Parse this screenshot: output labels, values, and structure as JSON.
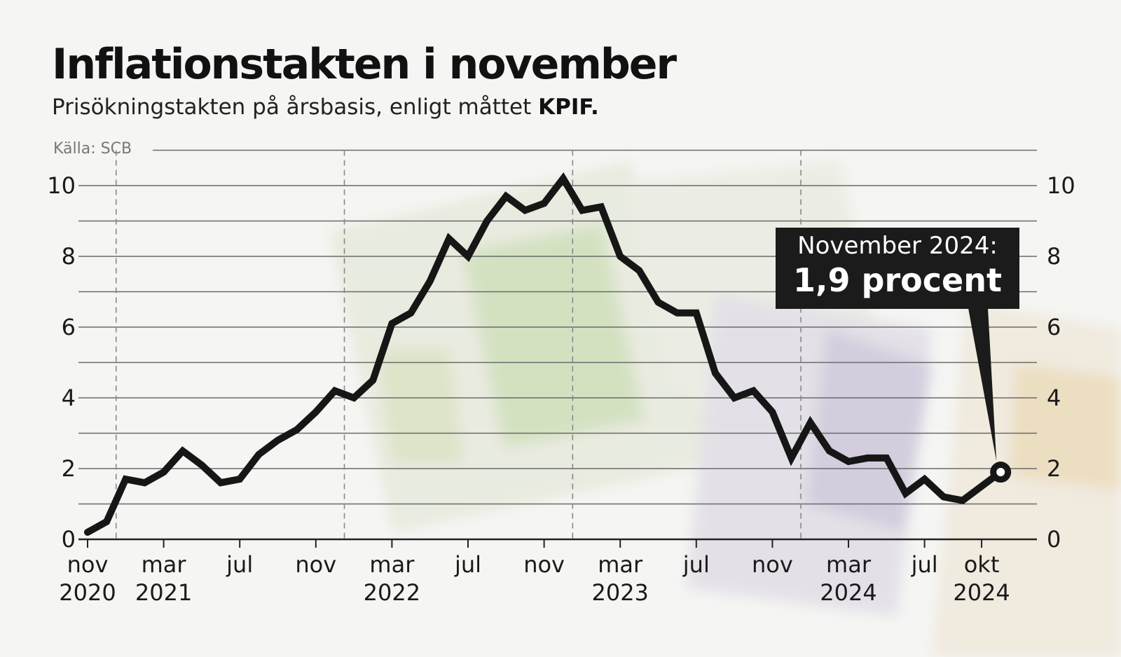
{
  "title": "Inflationstakten i november",
  "subtitle_text": "Prisökningstakten på årsbasis, enligt måttet ",
  "subtitle_bold": "KPIF.",
  "source": "Källa: SCB",
  "callout": {
    "line1": "November 2024:",
    "line2": "1,9 procent"
  },
  "colors": {
    "line": "#161616",
    "grid": "#6a6a6a",
    "callout_bg": "#1b1b1b"
  },
  "chart_data": {
    "type": "line",
    "title": "Inflationstakten i november",
    "subtitle": "Prisökningstakten på årsbasis, enligt måttet KPIF.",
    "ylim": [
      0,
      10
    ],
    "yticks": [
      0,
      2,
      4,
      6,
      8,
      10
    ],
    "grid": true,
    "grid_step": 1,
    "year_separators": "dashed vertical lines at year boundaries",
    "x_tick_labels": [
      {
        "index": 0,
        "lines": [
          "nov",
          "2020"
        ]
      },
      {
        "index": 4,
        "lines": [
          "mar",
          "2021"
        ]
      },
      {
        "index": 8,
        "lines": [
          "jul",
          ""
        ]
      },
      {
        "index": 12,
        "lines": [
          "nov",
          ""
        ]
      },
      {
        "index": 16,
        "lines": [
          "mar",
          "2022"
        ]
      },
      {
        "index": 20,
        "lines": [
          "jul",
          ""
        ]
      },
      {
        "index": 24,
        "lines": [
          "nov",
          ""
        ]
      },
      {
        "index": 28,
        "lines": [
          "mar",
          "2023"
        ]
      },
      {
        "index": 32,
        "lines": [
          "jul",
          ""
        ]
      },
      {
        "index": 36,
        "lines": [
          "nov",
          ""
        ]
      },
      {
        "index": 40,
        "lines": [
          "mar",
          "2024"
        ]
      },
      {
        "index": 44,
        "lines": [
          "jul",
          ""
        ]
      },
      {
        "index": 47,
        "lines": [
          "okt",
          "2024"
        ]
      }
    ],
    "x": [
      "2020-11",
      "2020-12",
      "2021-01",
      "2021-02",
      "2021-03",
      "2021-04",
      "2021-05",
      "2021-06",
      "2021-07",
      "2021-08",
      "2021-09",
      "2021-10",
      "2021-11",
      "2021-12",
      "2022-01",
      "2022-02",
      "2022-03",
      "2022-04",
      "2022-05",
      "2022-06",
      "2022-07",
      "2022-08",
      "2022-09",
      "2022-10",
      "2022-11",
      "2022-12",
      "2023-01",
      "2023-02",
      "2023-03",
      "2023-04",
      "2023-05",
      "2023-06",
      "2023-07",
      "2023-08",
      "2023-09",
      "2023-10",
      "2023-11",
      "2023-12",
      "2024-01",
      "2024-02",
      "2024-03",
      "2024-04",
      "2024-05",
      "2024-06",
      "2024-07",
      "2024-08",
      "2024-09",
      "2024-10",
      "2024-11"
    ],
    "series": [
      {
        "values": [
          0.2,
          0.5,
          1.7,
          1.6,
          1.9,
          2.5,
          2.1,
          1.6,
          1.7,
          2.4,
          2.8,
          3.1,
          3.6,
          4.2,
          4.0,
          4.5,
          6.1,
          6.4,
          7.3,
          8.5,
          8.0,
          9.0,
          9.7,
          9.3,
          9.5,
          10.2,
          9.3,
          9.4,
          8.0,
          7.6,
          6.7,
          6.4,
          6.4,
          4.7,
          4.0,
          4.2,
          3.6,
          2.3,
          3.3,
          2.5,
          2.2,
          2.3,
          2.3,
          1.3,
          1.7,
          1.2,
          1.1,
          1.5,
          1.9
        ]
      }
    ],
    "annotation": {
      "index": 48,
      "text": "November 2024: 1,9 procent"
    }
  }
}
